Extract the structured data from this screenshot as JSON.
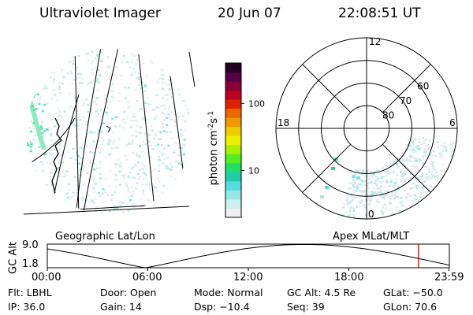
{
  "header": {
    "title": "Ultraviolet Imager",
    "date": "20 Jun 07",
    "time": "22:08:51 UT"
  },
  "left_panel": {
    "label": "Geographic Lat/Lon"
  },
  "colorbar": {
    "unit_label": "photon cm",
    "unit_exp1": "-2",
    "unit_mid": "s",
    "unit_exp2": "-1",
    "ticks": [
      {
        "value": 100,
        "label": "100"
      },
      {
        "value": 10,
        "label": "10"
      }
    ],
    "range": [
      2,
      400
    ],
    "scale": "log",
    "colors": [
      "#f0f0f0",
      "#cceeee",
      "#99e6e6",
      "#55dddd",
      "#22ccaa",
      "#22dd66",
      "#55ee22",
      "#aaee00",
      "#eeee00",
      "#eecc00",
      "#ee9900",
      "#ee6600",
      "#dd2200",
      "#bb0022",
      "#880033",
      "#550044",
      "#220022"
    ]
  },
  "right_panel": {
    "label": "Apex MLat/MLT",
    "mlt_labels": {
      "top": "12",
      "left": "18",
      "right": "6",
      "bottom": "0"
    },
    "lat_labels": [
      {
        "lat": 60,
        "label": "60"
      },
      {
        "lat": 70,
        "label": "70"
      },
      {
        "lat": 80,
        "label": "80"
      }
    ],
    "lat_circles": [
      50,
      60,
      70,
      80
    ]
  },
  "altitude_plot": {
    "ylabel": "GC Alt",
    "yticks": [
      "9.0",
      "1.8"
    ],
    "xticks": [
      "00:00",
      "06:00",
      "12:00",
      "18:00",
      "23:59"
    ],
    "ylim": [
      1.8,
      9.0
    ],
    "current_time_hours": 22.15,
    "marker_color": "#cc0000"
  },
  "info": {
    "flt": "Flt: LBHL",
    "ip": "IP: 36.0",
    "door": "Door: Open",
    "gain": "Gain: 14",
    "mode": "Mode: Normal",
    "dsp": "Dsp: −10.4",
    "gcalt": "GC Alt: 4.5 Re",
    "seq": "Seq: 39",
    "glat": "GLat: −50.0",
    "glon": "GLon: 70.6"
  }
}
